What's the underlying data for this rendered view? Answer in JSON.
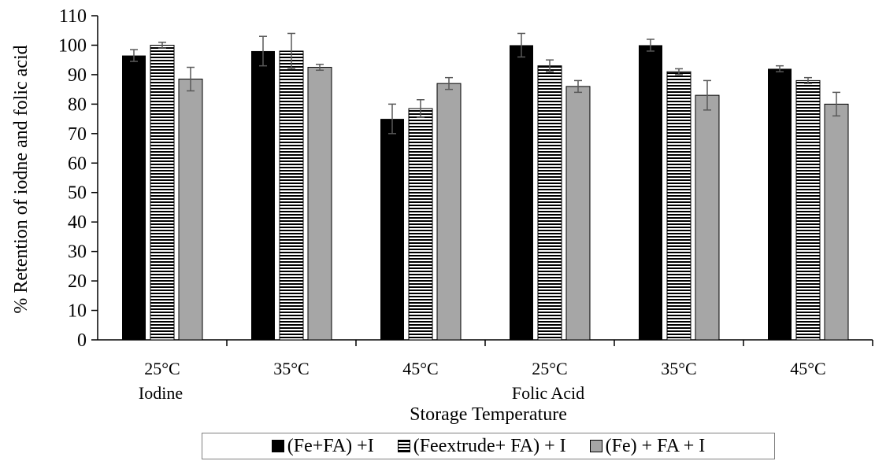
{
  "chart_data": {
    "type": "bar",
    "title": "",
    "xlabel": "Storage Temperature",
    "ylabel": "% Retention of iodne and folic acid",
    "ylim": [
      0,
      110
    ],
    "yticks": [
      0,
      10,
      20,
      30,
      40,
      50,
      60,
      70,
      80,
      90,
      100,
      110
    ],
    "categories": [
      "25°C",
      "35°C",
      "45°C",
      "25°C",
      "35°C",
      "45°C"
    ],
    "groups": [
      {
        "label": "Iodine"
      },
      {
        "label": "Folic Acid"
      }
    ],
    "series": [
      {
        "name": "(Fe+FA) +I",
        "pattern": "solid-black",
        "values": [
          96.5,
          98,
          75,
          100,
          100,
          92
        ],
        "errors": [
          2,
          5,
          5,
          4,
          2,
          1
        ]
      },
      {
        "name": "(Feextrude+ FA) + I",
        "pattern": "horizontal-stripes",
        "values": [
          100,
          98,
          78.5,
          93,
          91,
          88
        ],
        "errors": [
          1,
          6,
          3,
          2,
          1,
          1
        ]
      },
      {
        "name": "(Fe) + FA + I",
        "pattern": "solid-gray",
        "values": [
          88.5,
          92.5,
          87,
          86,
          83,
          80
        ],
        "errors": [
          4,
          1,
          2,
          2,
          5,
          4
        ]
      }
    ],
    "grid": false,
    "legend": "bottom",
    "colors": {
      "series1": "#000000",
      "series2_stripe": "#000000",
      "series3": "#a6a6a6",
      "error_bar": "#595959"
    }
  }
}
